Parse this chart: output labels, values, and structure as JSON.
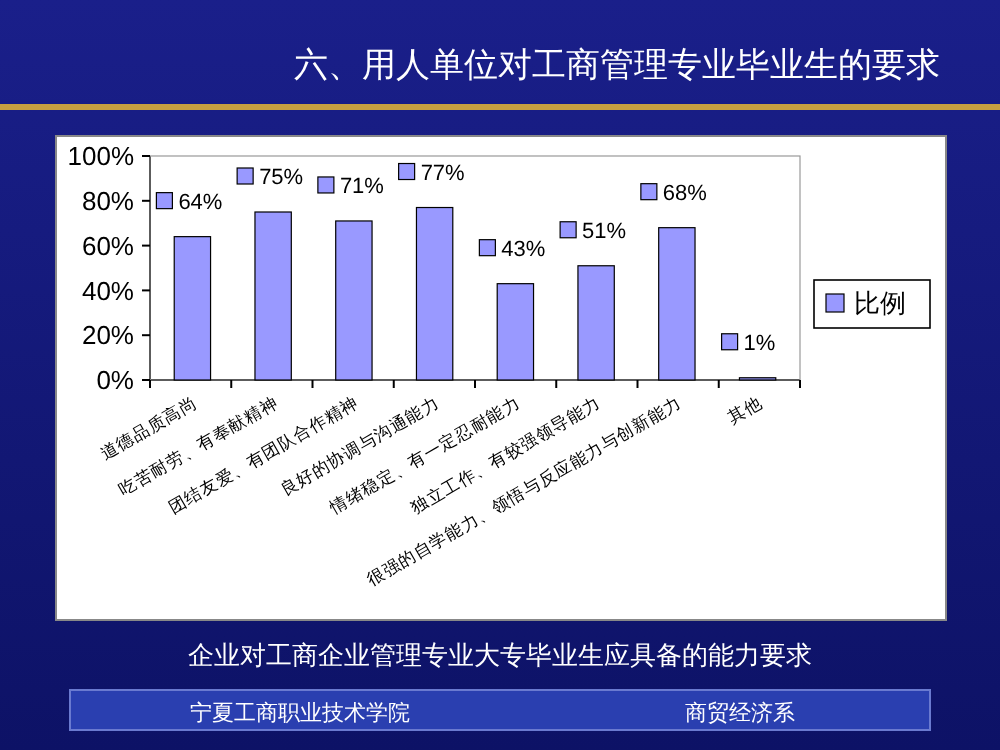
{
  "chart_data": {
    "type": "bar",
    "title": "六、用人单位对工商管理专业毕业生的要求",
    "categories": [
      "道德品质高尚",
      "吃苦耐劳、有奉献精神",
      "团结友爱、有团队合作精神",
      "良好的协调与沟通能力",
      "情绪稳定、有一定忍耐能力",
      "独立工作、有较强领导能力",
      "很强的自学能力、领悟与反应能力与创新能力",
      "其他"
    ],
    "series": [
      {
        "name": "比例",
        "color": "#9999ff",
        "values": [
          64,
          75,
          71,
          77,
          43,
          51,
          68,
          1
        ],
        "value_labels": [
          "64%",
          "75%",
          "71%",
          "77%",
          "43%",
          "51%",
          "68%",
          "1%"
        ]
      }
    ],
    "ylim": [
      0,
      100
    ],
    "yticks": [
      {
        "value": 0,
        "label": "0%"
      },
      {
        "value": 20,
        "label": "20%"
      },
      {
        "value": 40,
        "label": "40%"
      },
      {
        "value": 60,
        "label": "60%"
      },
      {
        "value": 80,
        "label": "80%"
      },
      {
        "value": 100,
        "label": "100%"
      }
    ],
    "grid": false,
    "legend": "right",
    "annotations": [
      "企业对工商企业管理专业大专毕业生应具备的能力要求",
      "宁夏工商职业技术学院",
      "商贸经济系"
    ]
  }
}
